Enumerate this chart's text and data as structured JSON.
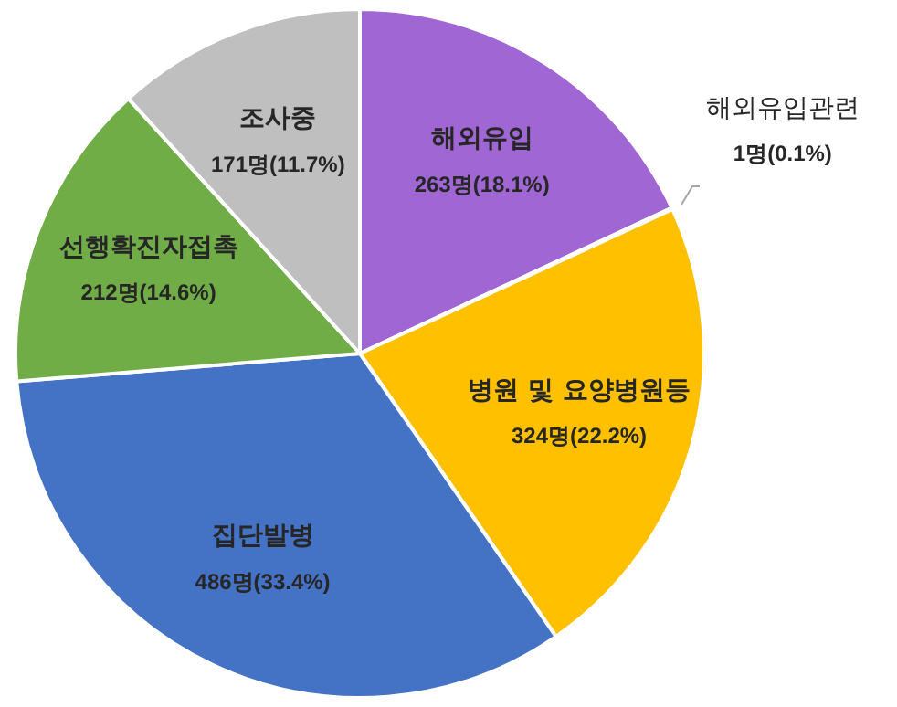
{
  "chart_data": {
    "type": "pie",
    "categories": [
      "해외유입",
      "해외유입관련",
      "병원 및 요양병원등",
      "집단발병",
      "선행확진자접촉",
      "조사중"
    ],
    "values": [
      263,
      1,
      324,
      486,
      212,
      171
    ],
    "value_labels": [
      "263명(18.1%)",
      "1명(0.1%)",
      "324명(22.2%)",
      "486명(33.4%)",
      "212명(14.6%)",
      "171명(11.7%)"
    ],
    "colors": [
      "#a066d3",
      "#5b9bd5",
      "#ffc000",
      "#4472c4",
      "#70ad47",
      "#bfbfbf"
    ],
    "legend": false
  }
}
